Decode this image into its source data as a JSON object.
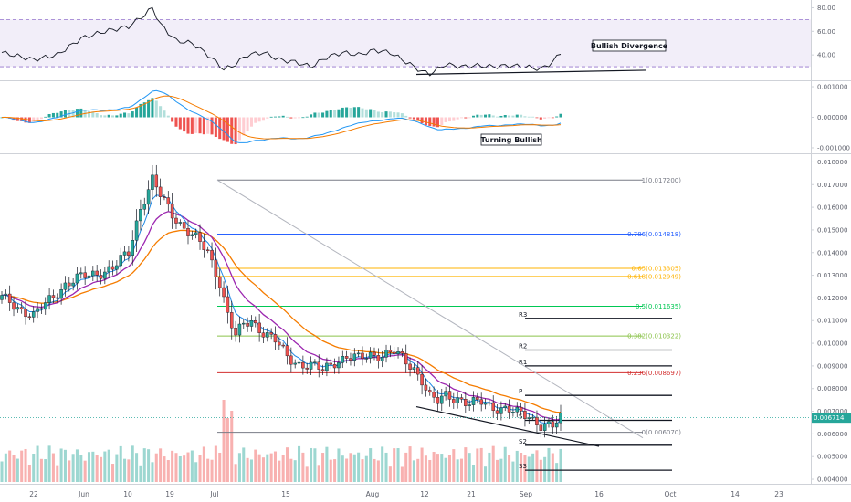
{
  "chart_data": {
    "type": "candlestick",
    "colors": {
      "up": "#26a69a",
      "down": "#ef5350",
      "ema_fast": "#1e88e5",
      "ema_mid": "#9c27b0",
      "ema_slow": "#f57c00",
      "rsi_line": "#131722",
      "rsi_band": "#9575cd",
      "fib_1": "#787b86",
      "fib_0786": "#2962ff",
      "fib_0650": "#ffb300",
      "fib_0618": "#ffb300",
      "fib_05": "#00c853",
      "fib_0382": "#8bc34a",
      "fib_0236": "#d32f2f",
      "fib_0": "#787b86",
      "pivot": "#131722",
      "last_price_tag": "#26a69a"
    },
    "x_ticks": [
      "22",
      "Jun",
      "10",
      "19",
      "Jul",
      "15",
      "Aug",
      "12",
      "21",
      "Sep",
      "16",
      "Oct",
      "14",
      "23"
    ],
    "rsi": {
      "y_ticks": [
        "80.00",
        "60.00",
        "40.00"
      ],
      "overbought": 70,
      "oversold": 30,
      "ylim": [
        20,
        85
      ],
      "annotation": "Bullish Divergence"
    },
    "macd": {
      "y_ticks": [
        "0.001000",
        "0.000000",
        "-0.001000"
      ],
      "ylim": [
        -0.00115,
        0.00115
      ],
      "annotation": "Turning Bullish"
    },
    "price": {
      "ylim": [
        0.0038,
        0.0183
      ],
      "y_ticks": [
        "0.018000",
        "0.017000",
        "0.016000",
        "0.015000",
        "0.014000",
        "0.013000",
        "0.012000",
        "0.011000",
        "0.010000",
        "0.009000",
        "0.008000",
        "0.007000",
        "0.006000",
        "0.005000",
        "0.004000"
      ],
      "last_price": "0.006714",
      "last_price_value": 0.006714,
      "fib_levels": [
        {
          "label": "1(0.017200)",
          "value": 0.0172,
          "color_key": "fib_1"
        },
        {
          "label": "0.786(0.014818)",
          "value": 0.014818,
          "color_key": "fib_0786"
        },
        {
          "label": "0.65(0.013305)",
          "value": 0.013305,
          "color_key": "fib_0650"
        },
        {
          "label": "0.618(0.012949)",
          "value": 0.012949,
          "color_key": "fib_0618"
        },
        {
          "label": "0.5(0.011635)",
          "value": 0.011635,
          "color_key": "fib_05"
        },
        {
          "label": "0.382(0.010322)",
          "value": 0.010322,
          "color_key": "fib_0382"
        },
        {
          "label": "0.236(0.008697)",
          "value": 0.008697,
          "color_key": "fib_0236"
        },
        {
          "label": "0(0.006070)",
          "value": 0.00607,
          "color_key": "fib_0"
        }
      ],
      "pivots": [
        {
          "label": "R3",
          "value": 0.0111
        },
        {
          "label": "R2",
          "value": 0.0097
        },
        {
          "label": "R1",
          "value": 0.009
        },
        {
          "label": "P",
          "value": 0.0077
        },
        {
          "label": "S1",
          "value": 0.0066
        },
        {
          "label": "S2",
          "value": 0.0055
        },
        {
          "label": "S3",
          "value": 0.0044
        }
      ]
    }
  }
}
